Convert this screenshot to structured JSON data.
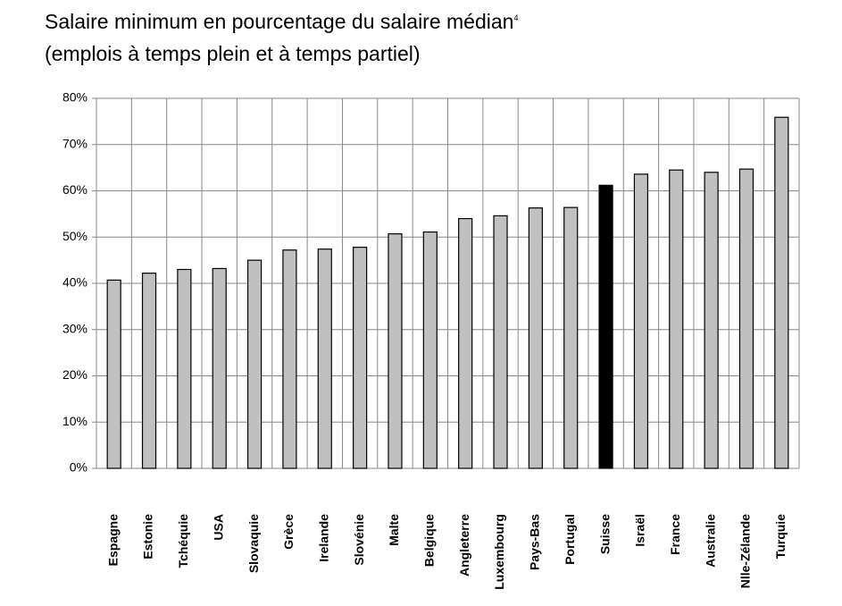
{
  "chart_data": {
    "type": "bar",
    "title": "Salaire minimum en pourcentage du salaire médian",
    "title_note": "4",
    "subtitle": "(emplois à temps plein et à temps partiel)",
    "categories": [
      "Espagne",
      "Estonie",
      "Tchéquie",
      "USA",
      "Slovaquie",
      "Grèce",
      "Irelande",
      "Slovénie",
      "Malte",
      "Belgique",
      "Angleterre",
      "Luxembourg",
      "Pays-Bas",
      "Portugal",
      "Suisse",
      "Israël",
      "France",
      "Australie",
      "Nlle-Zélande",
      "Turquie"
    ],
    "values": [
      40.7,
      42.2,
      43.0,
      43.2,
      45.0,
      47.2,
      47.4,
      47.8,
      50.7,
      51.1,
      54.0,
      54.6,
      56.3,
      56.4,
      61.2,
      63.6,
      64.5,
      64.0,
      64.7,
      75.9
    ],
    "colors": [
      "#c0c0c0",
      "#c0c0c0",
      "#c0c0c0",
      "#c0c0c0",
      "#c0c0c0",
      "#c0c0c0",
      "#c0c0c0",
      "#c0c0c0",
      "#c0c0c0",
      "#c0c0c0",
      "#c0c0c0",
      "#c0c0c0",
      "#c0c0c0",
      "#c0c0c0",
      "#000000",
      "#c0c0c0",
      "#c0c0c0",
      "#c0c0c0",
      "#c0c0c0",
      "#c0c0c0"
    ],
    "ylim": [
      0,
      80
    ],
    "yticks": [
      {
        "value": 0,
        "label": "0%"
      },
      {
        "value": 10,
        "label": "10%"
      },
      {
        "value": 20,
        "label": "20%"
      },
      {
        "value": 30,
        "label": "30%"
      },
      {
        "value": 40,
        "label": "40%"
      },
      {
        "value": 50,
        "label": "50%"
      },
      {
        "value": 60,
        "label": "60%"
      },
      {
        "value": 70,
        "label": "70%"
      },
      {
        "value": 80,
        "label": "80%"
      }
    ],
    "grid": true
  }
}
